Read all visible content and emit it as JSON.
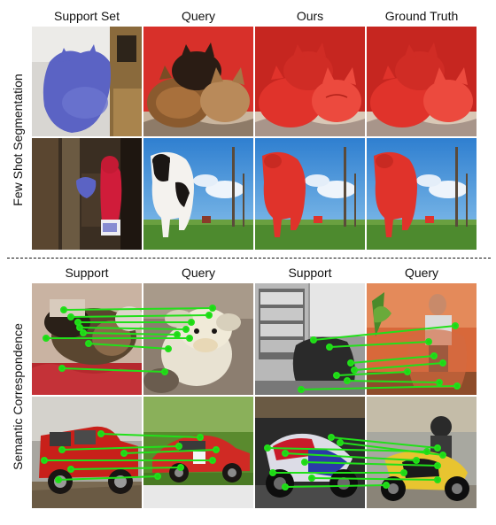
{
  "sections": {
    "few_shot": {
      "side_label": "Few Shot Segmentation",
      "headers": [
        "Support Set",
        "Query",
        "Ours",
        "Ground Truth"
      ]
    },
    "correspondence": {
      "side_label": "Semantic Correspondence",
      "headers": [
        "Support",
        "Query",
        "Support",
        "Query"
      ]
    }
  },
  "colors": {
    "mask_blue": "#5b63c4",
    "mask_red": "#e0332b",
    "match_line": "#22e01a",
    "match_dot": "#1fd615"
  }
}
